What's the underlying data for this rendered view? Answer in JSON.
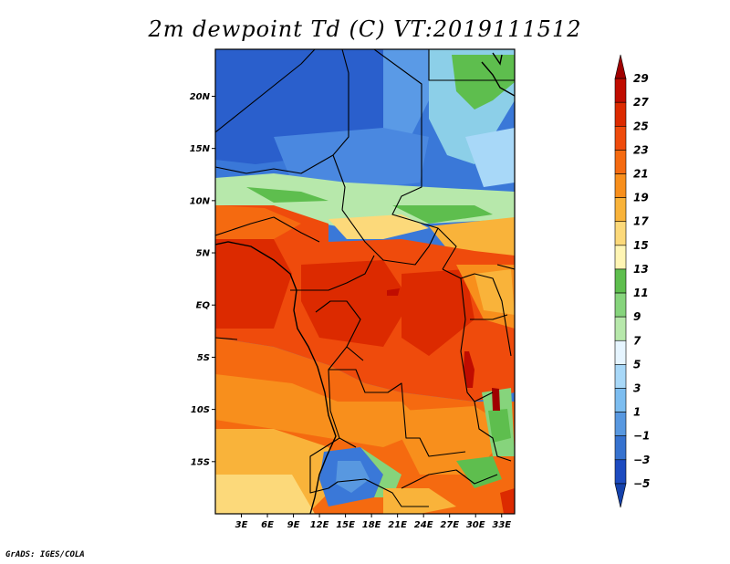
{
  "title": "2m dewpoint Td (C) VT:2019111512",
  "credit": "GrADS: IGES/COLA",
  "map": {
    "lat_labels": [
      "20N",
      "15N",
      "10N",
      "5N",
      "EQ",
      "5S",
      "10S",
      "15S"
    ],
    "lon_labels": [
      "3E",
      "6E",
      "9E",
      "12E",
      "15E",
      "18E",
      "21E",
      "24E",
      "27E",
      "30E",
      "33E"
    ],
    "lon_range": [
      0,
      34.5
    ],
    "lat_range": [
      -20,
      24.5
    ]
  },
  "colorbar": {
    "levels": [
      "29",
      "27",
      "25",
      "23",
      "21",
      "19",
      "17",
      "15",
      "13",
      "11",
      "9",
      "7",
      "5",
      "3",
      "1",
      "−1",
      "−3",
      "−5"
    ],
    "colors": [
      "#a00000",
      "#c00c00",
      "#dc2a00",
      "#ef4b0c",
      "#f56a10",
      "#f88f1c",
      "#f9b33a",
      "#fcd97a",
      "#fff5b4",
      "#5ebe4e",
      "#86d47c",
      "#b7e8ab",
      "#e6f5ff",
      "#a8d8f8",
      "#7cbdf0",
      "#5898e0",
      "#3672cf",
      "#1d4bc0",
      "#1542ab"
    ]
  }
}
